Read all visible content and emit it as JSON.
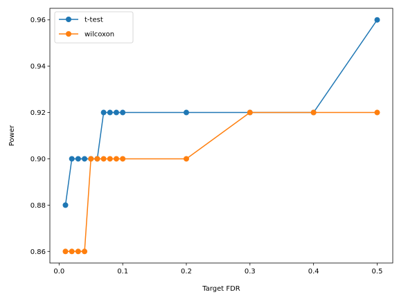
{
  "chart_data": {
    "type": "line",
    "title": "",
    "xlabel": "Target FDR",
    "ylabel": "Power",
    "xlim": [
      -0.0145,
      0.5245
    ],
    "ylim": [
      0.855,
      0.965
    ],
    "xticks": [
      0.0,
      0.1,
      0.2,
      0.3,
      0.4,
      0.5
    ],
    "xtick_labels": [
      "0.0",
      "0.1",
      "0.2",
      "0.3",
      "0.4",
      "0.5"
    ],
    "yticks": [
      0.86,
      0.88,
      0.9,
      0.92,
      0.94,
      0.96
    ],
    "ytick_labels": [
      "0.86",
      "0.88",
      "0.90",
      "0.92",
      "0.94",
      "0.96"
    ],
    "grid": false,
    "legend_position": "top-left",
    "x": [
      0.01,
      0.02,
      0.03,
      0.04,
      0.05,
      0.06,
      0.07,
      0.08,
      0.09,
      0.1,
      0.2,
      0.3,
      0.4,
      0.5
    ],
    "series": [
      {
        "name": "t-test",
        "color": "#1f77b4",
        "values": [
          0.88,
          0.9,
          0.9,
          0.9,
          0.9,
          0.9,
          0.92,
          0.92,
          0.92,
          0.92,
          0.92,
          0.92,
          0.92,
          0.96
        ]
      },
      {
        "name": "wilcoxon",
        "color": "#ff7f0e",
        "values": [
          0.86,
          0.86,
          0.86,
          0.86,
          0.9,
          0.9,
          0.9,
          0.9,
          0.9,
          0.9,
          0.9,
          0.92,
          0.92,
          0.92
        ]
      }
    ]
  }
}
